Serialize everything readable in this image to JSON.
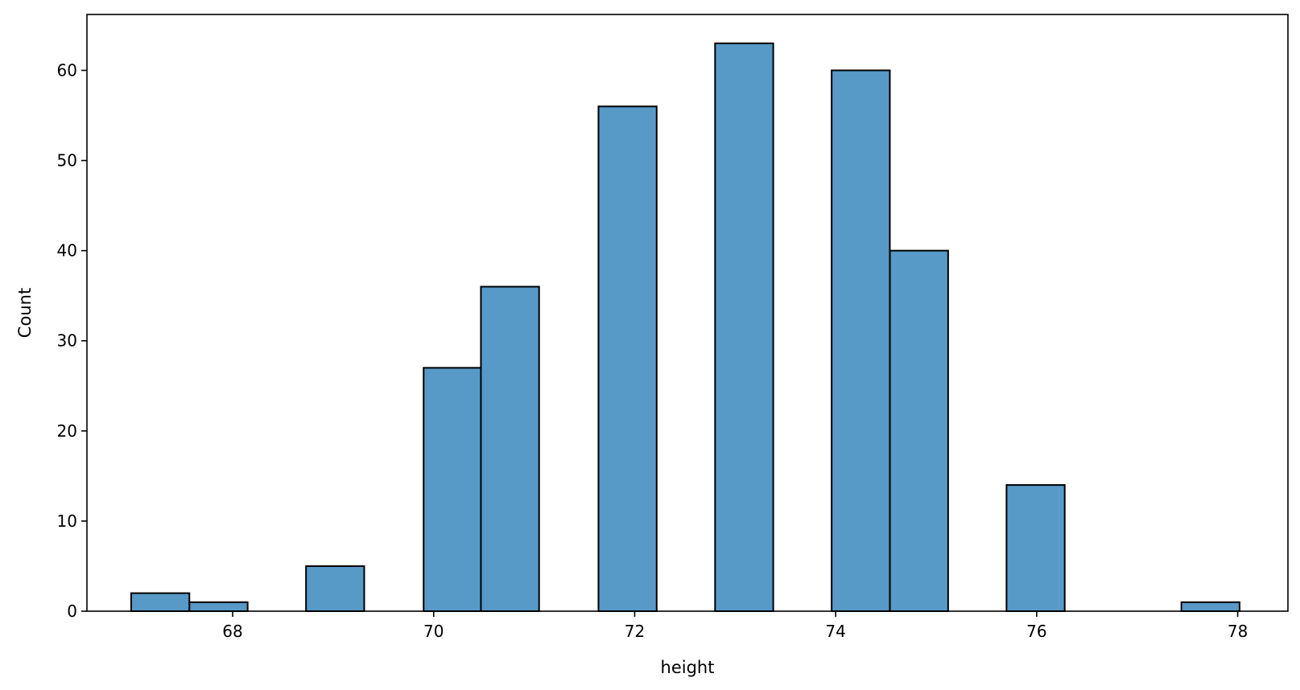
{
  "chart_data": {
    "type": "bar",
    "title": "",
    "xlabel": "height",
    "ylabel": "Count",
    "xlim": [
      66.55,
      78.5
    ],
    "ylim": [
      0,
      66.2
    ],
    "grid": false,
    "bin_width": 0.579,
    "bins": [
      {
        "left": 66.99,
        "count": 2
      },
      {
        "left": 67.57,
        "count": 1
      },
      {
        "left": 68.73,
        "count": 5
      },
      {
        "left": 69.9,
        "count": 27
      },
      {
        "left": 70.47,
        "count": 36
      },
      {
        "left": 71.64,
        "count": 56
      },
      {
        "left": 72.8,
        "count": 63
      },
      {
        "left": 73.96,
        "count": 60
      },
      {
        "left": 74.54,
        "count": 40
      },
      {
        "left": 75.7,
        "count": 14
      },
      {
        "left": 77.44,
        "count": 1
      }
    ],
    "x_ticks": [
      {
        "value": 68,
        "label": "68"
      },
      {
        "value": 70,
        "label": "70"
      },
      {
        "value": 72,
        "label": "72"
      },
      {
        "value": 74,
        "label": "74"
      },
      {
        "value": 76,
        "label": "76"
      },
      {
        "value": 78,
        "label": "78"
      }
    ],
    "y_ticks": [
      {
        "value": 0,
        "label": "0"
      },
      {
        "value": 10,
        "label": "10"
      },
      {
        "value": 20,
        "label": "20"
      },
      {
        "value": 30,
        "label": "30"
      },
      {
        "value": 40,
        "label": "40"
      },
      {
        "value": 50,
        "label": "50"
      },
      {
        "value": 60,
        "label": "60"
      }
    ],
    "colors": {
      "bar_fill": "#5799c7",
      "bar_edge": "#000000",
      "axis": "#000000"
    }
  }
}
